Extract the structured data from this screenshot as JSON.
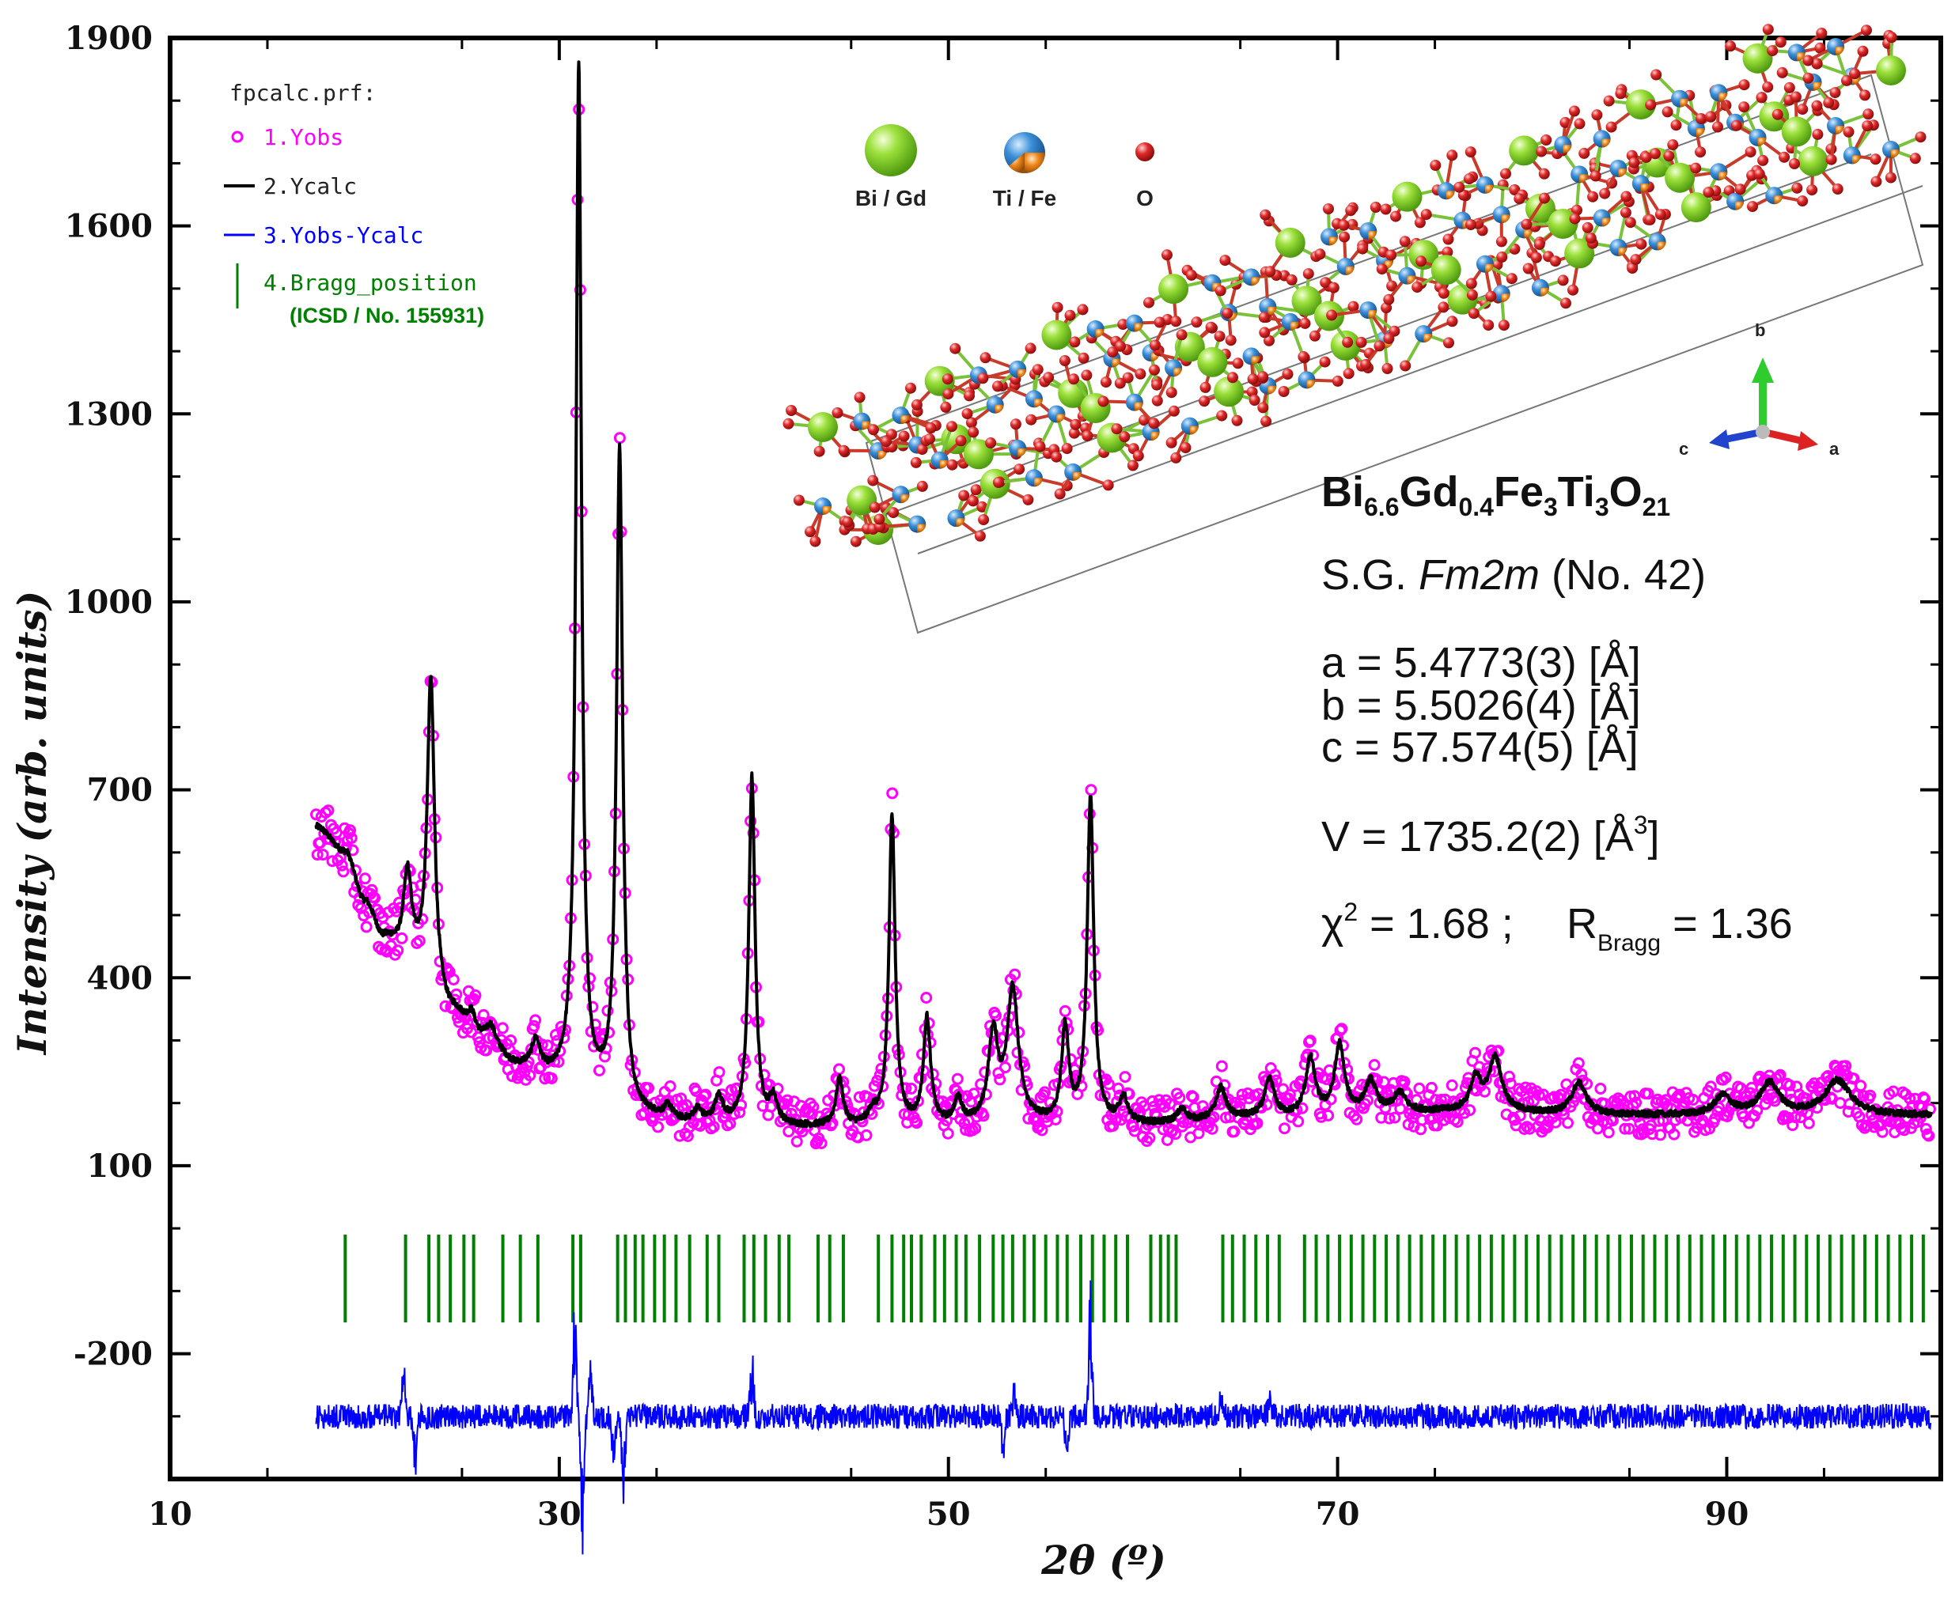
{
  "chart_data": {
    "type": "line",
    "title": "",
    "xlabel": "2θ (º)",
    "ylabel": "Intensity (arb. units)",
    "xlim": [
      10,
      101
    ],
    "ylim": [
      -400,
      1900
    ],
    "xticks": [
      10,
      30,
      50,
      70,
      90
    ],
    "yticks": [
      -200,
      100,
      400,
      700,
      1000,
      1300,
      1600,
      1900
    ],
    "xtick_labels": [
      "10",
      "30",
      "50",
      "70",
      "90"
    ],
    "ytick_labels": [
      "-200",
      "100",
      "400",
      "700",
      "1000",
      "1300",
      "1600",
      "1900"
    ],
    "x_range": [
      17.5,
      100.5
    ],
    "background": [
      [
        17.5,
        640
      ],
      [
        19,
        600
      ],
      [
        20,
        520
      ],
      [
        21,
        460
      ],
      [
        22.5,
        420
      ],
      [
        24.5,
        340
      ],
      [
        26,
        300
      ],
      [
        28,
        255
      ],
      [
        30,
        235
      ],
      [
        32,
        210
      ],
      [
        34,
        175
      ],
      [
        37,
        165
      ],
      [
        42,
        160
      ],
      [
        50,
        160
      ],
      [
        55,
        165
      ],
      [
        60,
        165
      ],
      [
        66,
        175
      ],
      [
        75,
        185
      ],
      [
        85,
        180
      ],
      [
        95,
        180
      ],
      [
        100.5,
        180
      ]
    ],
    "peaks": [
      [
        22.2,
        140,
        0.25
      ],
      [
        23.4,
        490,
        0.22
      ],
      [
        25.5,
        30,
        0.25
      ],
      [
        26.5,
        25,
        0.25
      ],
      [
        28.8,
        45,
        0.25
      ],
      [
        31.0,
        1630,
        0.17
      ],
      [
        33.1,
        1050,
        0.19
      ],
      [
        35.6,
        20,
        0.25
      ],
      [
        37.1,
        20,
        0.25
      ],
      [
        38.2,
        40,
        0.25
      ],
      [
        39.9,
        555,
        0.19
      ],
      [
        41.0,
        40,
        0.25
      ],
      [
        44.4,
        75,
        0.22
      ],
      [
        46.1,
        20,
        0.25
      ],
      [
        47.1,
        495,
        0.19
      ],
      [
        48.9,
        170,
        0.22
      ],
      [
        50.5,
        40,
        0.25
      ],
      [
        52.3,
        140,
        0.3
      ],
      [
        53.3,
        210,
        0.35
      ],
      [
        56.0,
        150,
        0.22
      ],
      [
        57.3,
        520,
        0.2
      ],
      [
        59.0,
        40,
        0.25
      ],
      [
        62.0,
        20,
        0.3
      ],
      [
        64.0,
        50,
        0.3
      ],
      [
        66.5,
        60,
        0.3
      ],
      [
        68.6,
        90,
        0.3
      ],
      [
        70.1,
        110,
        0.3
      ],
      [
        71.7,
        50,
        0.35
      ],
      [
        73.2,
        30,
        0.35
      ],
      [
        77.1,
        50,
        0.35
      ],
      [
        78.1,
        85,
        0.4
      ],
      [
        82.4,
        50,
        0.45
      ],
      [
        89.8,
        30,
        0.5
      ],
      [
        92.2,
        50,
        0.6
      ],
      [
        95.7,
        55,
        0.8
      ]
    ],
    "bragg_positions": [
      19.0,
      22.1,
      23.3,
      23.8,
      24.4,
      25.1,
      25.6,
      27.1,
      28.0,
      28.9,
      30.7,
      31.1,
      33.0,
      33.4,
      33.9,
      34.3,
      34.9,
      35.4,
      36.0,
      36.7,
      37.6,
      38.2,
      39.5,
      40.0,
      40.6,
      41.3,
      41.8,
      43.3,
      43.9,
      44.6,
      46.4,
      47.1,
      47.7,
      48.1,
      48.6,
      49.3,
      49.8,
      50.4,
      50.9,
      51.6,
      52.3,
      52.8,
      53.3,
      53.9,
      54.4,
      55.0,
      55.6,
      56.1,
      56.8,
      57.4,
      58.0,
      58.6,
      59.2,
      60.4,
      60.9,
      61.3,
      61.7,
      64.1,
      64.6,
      65.2,
      65.8,
      66.4,
      67.0,
      68.3,
      68.9,
      69.5,
      70.1,
      70.7,
      71.3,
      71.9,
      72.5,
      73.1,
      73.7,
      74.3,
      74.9,
      75.5,
      76.1,
      76.7,
      77.3,
      77.9,
      78.5,
      79.1,
      79.7,
      80.3,
      80.9,
      81.5,
      82.1,
      82.7,
      83.3,
      83.9,
      84.5,
      85.1,
      85.7,
      86.3,
      86.9,
      87.5,
      88.1,
      88.7,
      89.3,
      89.9,
      90.5,
      91.1,
      91.7,
      92.3,
      92.9,
      93.5,
      94.1,
      94.7,
      95.3,
      95.9,
      96.5,
      97.1,
      97.7,
      98.3,
      98.9,
      99.5,
      100.1
    ],
    "bragg_y_range": [
      -150,
      -10
    ],
    "difference_offset": -300,
    "difference_spikes": [
      [
        22.0,
        60
      ],
      [
        22.6,
        -70
      ],
      [
        30.8,
        120
      ],
      [
        31.2,
        -150
      ],
      [
        31.6,
        90
      ],
      [
        32.8,
        -80
      ],
      [
        33.3,
        -110
      ],
      [
        39.9,
        70
      ],
      [
        57.3,
        150
      ],
      [
        52.8,
        -45
      ],
      [
        53.4,
        40
      ],
      [
        56.1,
        -50
      ],
      [
        64.0,
        25
      ],
      [
        66.5,
        25
      ]
    ],
    "series": [
      {
        "name": "1.Yobs",
        "marker": "circle",
        "color": "#ff00ff"
      },
      {
        "name": "2.Ycalc",
        "marker": "line",
        "color": "#000000"
      },
      {
        "name": "3.Yobs-Ycalc",
        "marker": "line",
        "color": "#0000ff"
      },
      {
        "name": "4.Bragg_position",
        "marker": "vbar",
        "color": "#008000"
      }
    ]
  },
  "legend": {
    "title": "fpcalc.prf:",
    "items": [
      {
        "label": "1.Yobs",
        "color": "#ff00ff"
      },
      {
        "label": "2.Ycalc",
        "color": "#000000"
      },
      {
        "label": "3.Yobs-Ycalc",
        "color": "#0000ff"
      },
      {
        "label": "4.Bragg_position",
        "color": "#008000"
      }
    ],
    "bragg_source": "(ICSD / No. 155931)"
  },
  "structure": {
    "atoms": [
      {
        "label": "Bi / Gd",
        "color": "#7ad21c"
      },
      {
        "label": "Ti / Fe",
        "color": "#3b8fd8",
        "color2": "#f08a1c"
      },
      {
        "label": "O",
        "color": "#d61e1e"
      }
    ],
    "axes": {
      "a": "a",
      "b": "b",
      "c": "c"
    }
  },
  "info": {
    "formula": {
      "el1": "Bi",
      "s1": "6.6",
      "el2": "Gd",
      "s2": "0.4",
      "el3": "Fe",
      "s3": "3",
      "el4": "Ti",
      "s4": "3",
      "el5": "O",
      "s5": "21"
    },
    "space_group": {
      "prefix": "S.G. ",
      "symbol": "Fm2m",
      "suffix": " (No. 42)"
    },
    "a": "a = 5.4773(3) [Å]",
    "b": "b = 5.5026(4) [Å]",
    "c": "c = 57.574(5) [Å]",
    "volume": {
      "text": "V = 1735.2(2) [Å",
      "sup": "3",
      "close": "]"
    },
    "chi2": {
      "sym": "χ",
      "sup": "2",
      "text": " = 1.68 ;"
    },
    "rbragg": {
      "R": "R",
      "sub": "Bragg",
      "text": " = 1.36"
    }
  }
}
